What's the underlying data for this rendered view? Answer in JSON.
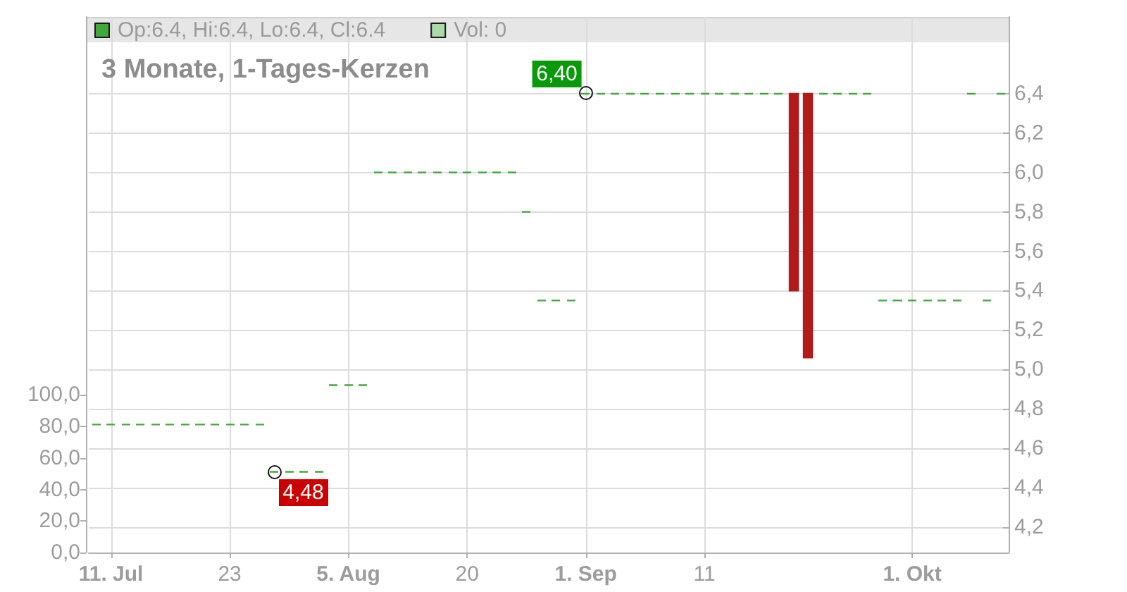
{
  "chart_data": {
    "type": "candlestick",
    "title": "3 Monate, 1-Tages-Kerzen",
    "categories": [
      null,
      "11. Jul",
      null,
      null,
      null,
      null,
      null,
      null,
      null,
      "23",
      null,
      null,
      null,
      null,
      null,
      null,
      null,
      "5. Aug",
      null,
      null,
      null,
      null,
      null,
      null,
      null,
      "20",
      null,
      null,
      null,
      null,
      null,
      null,
      null,
      "1. Sep",
      null,
      null,
      null,
      null,
      null,
      null,
      null,
      "11",
      null,
      null,
      null,
      null,
      null,
      null,
      null,
      null,
      null,
      null,
      null,
      null,
      null,
      "1. Okt",
      null,
      null,
      null,
      null,
      null,
      null
    ],
    "series": [
      {
        "name": "Op:6.4, Hi:6.4, Lo:6.4, Cl:6.4",
        "color": "#43a83c",
        "ohlc": [
          [
            4.72,
            4.72,
            4.72,
            4.72
          ],
          [
            4.72,
            4.72,
            4.72,
            4.72
          ],
          [
            4.72,
            4.72,
            4.72,
            4.72
          ],
          [
            4.72,
            4.72,
            4.72,
            4.72
          ],
          [
            4.72,
            4.72,
            4.72,
            4.72
          ],
          [
            4.72,
            4.72,
            4.72,
            4.72
          ],
          [
            4.72,
            4.72,
            4.72,
            4.72
          ],
          [
            4.72,
            4.72,
            4.72,
            4.72
          ],
          [
            4.72,
            4.72,
            4.72,
            4.72
          ],
          [
            4.72,
            4.72,
            4.72,
            4.72
          ],
          [
            4.72,
            4.72,
            4.72,
            4.72
          ],
          [
            4.72,
            4.72,
            4.72,
            4.72
          ],
          [
            4.48,
            4.48,
            4.48,
            4.48
          ],
          [
            4.48,
            4.48,
            4.48,
            4.48
          ],
          [
            4.48,
            4.48,
            4.48,
            4.48
          ],
          [
            4.48,
            4.48,
            4.48,
            4.48
          ],
          [
            4.92,
            4.92,
            4.92,
            4.92
          ],
          [
            4.92,
            4.92,
            4.92,
            4.92
          ],
          [
            4.92,
            4.92,
            4.92,
            4.92
          ],
          [
            6,
            6,
            6,
            6
          ],
          [
            6,
            6,
            6,
            6
          ],
          [
            6,
            6,
            6,
            6
          ],
          [
            6,
            6,
            6,
            6
          ],
          [
            6,
            6,
            6,
            6
          ],
          [
            6,
            6,
            6,
            6
          ],
          [
            6,
            6,
            6,
            6
          ],
          [
            6,
            6,
            6,
            6
          ],
          [
            6,
            6,
            6,
            6
          ],
          [
            6,
            6,
            6,
            6
          ],
          [
            5.8,
            5.8,
            5.8,
            5.8
          ],
          [
            5.35,
            5.35,
            5.35,
            5.35
          ],
          [
            5.35,
            5.35,
            5.35,
            5.35
          ],
          [
            5.35,
            5.35,
            5.35,
            5.35
          ],
          [
            6.4,
            6.4,
            6.4,
            6.4
          ],
          [
            6.4,
            6.4,
            6.4,
            6.4
          ],
          [
            6.4,
            6.4,
            6.4,
            6.4
          ],
          [
            6.4,
            6.4,
            6.4,
            6.4
          ],
          [
            6.4,
            6.4,
            6.4,
            6.4
          ],
          [
            6.4,
            6.4,
            6.4,
            6.4
          ],
          [
            6.4,
            6.4,
            6.4,
            6.4
          ],
          [
            6.4,
            6.4,
            6.4,
            6.4
          ],
          [
            6.4,
            6.4,
            6.4,
            6.4
          ],
          [
            6.4,
            6.4,
            6.4,
            6.4
          ],
          [
            6.4,
            6.4,
            6.4,
            6.4
          ],
          [
            6.4,
            6.4,
            6.4,
            6.4
          ],
          [
            6.4,
            6.4,
            6.4,
            6.4
          ],
          [
            6.4,
            6.4,
            6.4,
            6.4
          ],
          [
            6.4,
            6.4,
            5.4,
            5.4
          ],
          [
            6.4,
            6.4,
            5.06,
            5.06
          ],
          [
            6.4,
            6.4,
            6.4,
            6.4
          ],
          [
            6.4,
            6.4,
            6.4,
            6.4
          ],
          [
            6.4,
            6.4,
            6.4,
            6.4
          ],
          [
            6.4,
            6.4,
            6.4,
            6.4
          ],
          [
            5.35,
            5.35,
            5.35,
            5.35
          ],
          [
            5.35,
            5.35,
            5.35,
            5.35
          ],
          [
            5.35,
            5.35,
            5.35,
            5.35
          ],
          [
            5.35,
            5.35,
            5.35,
            5.35
          ],
          [
            5.35,
            5.35,
            5.35,
            5.35
          ],
          [
            5.35,
            5.35,
            5.35,
            5.35
          ],
          [
            6.4,
            6.4,
            6.4,
            6.4
          ],
          [
            5.35,
            5.35,
            5.35,
            5.35
          ],
          [
            6.4,
            6.4,
            6.4,
            6.4
          ]
        ],
        "colors": [
          "#43a83c",
          "#43a83c",
          "#43a83c",
          "#43a83c",
          "#43a83c",
          "#43a83c",
          "#43a83c",
          "#43a83c",
          "#43a83c",
          "#43a83c",
          "#43a83c",
          "#43a83c",
          "#43a83c",
          "#43a83c",
          "#43a83c",
          "#43a83c",
          "#43a83c",
          "#43a83c",
          "#43a83c",
          "#43a83c",
          "#43a83c",
          "#43a83c",
          "#43a83c",
          "#43a83c",
          "#43a83c",
          "#43a83c",
          "#43a83c",
          "#43a83c",
          "#43a83c",
          "#43a83c",
          "#43a83c",
          "#43a83c",
          "#43a83c",
          "#43a83c",
          "#43a83c",
          "#43a83c",
          "#43a83c",
          "#43a83c",
          "#43a83c",
          "#43a83c",
          "#43a83c",
          "#43a83c",
          "#43a83c",
          "#43a83c",
          "#43a83c",
          "#43a83c",
          "#43a83c",
          "#b31b1b",
          "#b31b1b",
          "#43a83c",
          "#43a83c",
          "#43a83c",
          "#43a83c",
          "#43a83c",
          "#43a83c",
          "#43a83c",
          "#43a83c",
          "#43a83c",
          "#43a83c",
          "#43a83c",
          "#43a83c",
          "#43a83c"
        ]
      },
      {
        "name": "Vol: 0",
        "type": "bar",
        "axis": "y2",
        "color": "#a9dba9",
        "values": [
          null,
          null,
          null,
          null,
          null,
          null,
          null,
          null,
          null,
          null,
          null,
          null,
          null,
          null,
          null,
          null,
          null,
          null,
          null,
          null,
          null,
          null,
          null,
          null,
          null,
          null,
          null,
          null,
          null,
          null,
          null,
          null,
          null,
          null,
          null,
          null,
          null,
          null,
          null,
          null,
          null,
          null,
          null,
          null,
          null,
          null,
          null,
          null,
          null,
          null,
          null,
          null,
          null,
          null,
          null,
          null,
          null,
          null,
          null,
          null,
          null,
          null
        ]
      }
    ],
    "ylim": [
      4.07,
      6.79
    ],
    "yticks": [
      {
        "value": 4.2,
        "label": "4,2"
      },
      {
        "value": 4.4,
        "label": "4,4"
      },
      {
        "value": 4.6,
        "label": "4,6"
      },
      {
        "value": 4.8,
        "label": "4,8"
      },
      {
        "value": 5.0,
        "label": "5,0"
      },
      {
        "value": 5.2,
        "label": "5,2"
      },
      {
        "value": 5.4,
        "label": "5,4"
      },
      {
        "value": 5.6,
        "label": "5,6"
      },
      {
        "value": 5.8,
        "label": "5,8"
      },
      {
        "value": 6.0,
        "label": "6,0"
      },
      {
        "value": 6.2,
        "label": "6,2"
      },
      {
        "value": 6.4,
        "label": "6,4"
      }
    ],
    "y2lim": [
      0,
      340
    ],
    "y2ticks": [
      {
        "value": 0,
        "label": "0,0"
      },
      {
        "value": 20,
        "label": "20,0"
      },
      {
        "value": 40,
        "label": "40,0"
      },
      {
        "value": 60,
        "label": "60,0"
      },
      {
        "value": 80,
        "label": "80,0"
      },
      {
        "value": 100,
        "label": "100,0"
      }
    ],
    "grid": true,
    "legend": "top left",
    "annotations": [
      {
        "text": "6,40",
        "x": "1. Sep",
        "y": 6.4
      },
      {
        "text": "4,48",
        "y": 4.48
      }
    ]
  }
}
